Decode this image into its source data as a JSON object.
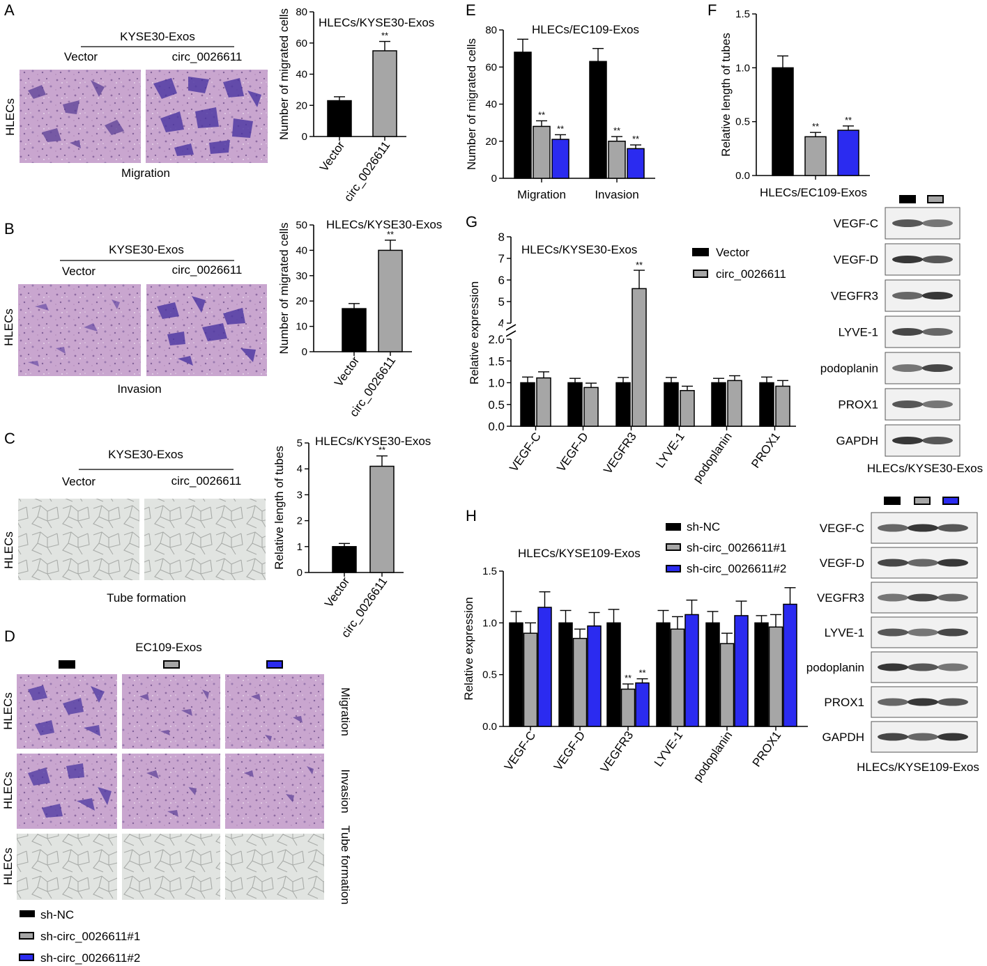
{
  "panels": {
    "A": {
      "letter": "A",
      "exos": "KYSE30-Exos",
      "col1": "Vector",
      "col2": "circ_0026611",
      "row": "HLECs",
      "caption": "Migration",
      "chart_title": "HLECs/KYSE30-Exos",
      "ylabel": "Number of migrated cells",
      "star": "**"
    },
    "B": {
      "letter": "B",
      "exos": "KYSE30-Exos",
      "col1": "Vector",
      "col2": "circ_0026611",
      "row": "HLECs",
      "caption": "Invasion",
      "chart_title": "HLECs/KYSE30-Exos",
      "ylabel": "Number of migrated cells",
      "star": "**"
    },
    "C": {
      "letter": "C",
      "exos": "KYSE30-Exos",
      "col1": "Vector",
      "col2": "circ_0026611",
      "row": "HLECs",
      "caption": "Tube formation",
      "chart_title": "HLECs/KYSE30-Exos",
      "ylabel": "Relative length of tubes",
      "star": "**"
    },
    "D": {
      "letter": "D",
      "exos": "EC109-Exos",
      "rows": [
        "HLECs",
        "HLECs",
        "HLECs"
      ],
      "side": [
        "Migration",
        "Invasion",
        "Tube formation"
      ],
      "legend": [
        "sh-NC",
        "sh-circ_0026611#1",
        "sh-circ_0026611#2"
      ]
    },
    "E": {
      "letter": "E",
      "chart_title": "HLECs/EC109-Exos",
      "ylabel": "Number of migrated cells",
      "star": "**"
    },
    "F": {
      "letter": "F",
      "xtitle": "HLECs/EC109-Exos",
      "ylabel": "Relative length of tubes",
      "star": "**"
    },
    "G": {
      "letter": "G",
      "chart_title": "HLECs/KYSE30-Exos",
      "ylabel": "Relative expression",
      "legend": [
        "Vector",
        "circ_0026611"
      ],
      "star": "**",
      "blot_title": "HLECs/KYSE30-Exos",
      "blot_labels": [
        "VEGF-C",
        "VEGF-D",
        "VEGFR3",
        "LYVE-1",
        "podoplanin",
        "PROX1",
        "GAPDH"
      ]
    },
    "H": {
      "letter": "H",
      "chart_title": "HLECs/KYSE109-Exos",
      "ylabel": "Relative expression",
      "legend": [
        "sh-NC",
        "sh-circ_0026611#1",
        "sh-circ_0026611#2"
      ],
      "star": "**",
      "blot_title": "HLECs/KYSE109-Exos",
      "blot_labels": [
        "VEGF-C",
        "VEGF-D",
        "VEGFR3",
        "LYVE-1",
        "podoplanin",
        "PROX1",
        "GAPDH"
      ]
    }
  },
  "colors": {
    "black": "#000000",
    "gray": "#a6a6a6",
    "blue": "#2b2bf0"
  },
  "chart_data": [
    {
      "id": "A",
      "type": "bar",
      "title": "HLECs/KYSE30-Exos",
      "ylabel": "Number of migrated cells",
      "categories": [
        "Vector",
        "circ_0026611"
      ],
      "values": [
        23,
        55
      ],
      "errors": [
        2.5,
        6
      ],
      "significance": [
        "",
        "**"
      ],
      "ylim": [
        0,
        80
      ],
      "yticks": [
        0,
        20,
        40,
        60,
        80
      ]
    },
    {
      "id": "B",
      "type": "bar",
      "title": "HLECs/KYSE30-Exos",
      "ylabel": "Number of migrated cells",
      "categories": [
        "Vector",
        "circ_0026611"
      ],
      "values": [
        17,
        40
      ],
      "errors": [
        2,
        4
      ],
      "significance": [
        "",
        "**"
      ],
      "ylim": [
        0,
        50
      ],
      "yticks": [
        0,
        10,
        20,
        30,
        40,
        50
      ]
    },
    {
      "id": "C",
      "type": "bar",
      "title": "HLECs/KYSE30-Exos",
      "ylabel": "Relative length of tubes",
      "categories": [
        "Vector",
        "circ_0026611"
      ],
      "values": [
        1.0,
        4.1
      ],
      "errors": [
        0.12,
        0.4
      ],
      "significance": [
        "",
        "**"
      ],
      "ylim": [
        0,
        5
      ],
      "yticks": [
        0,
        1,
        2,
        3,
        4,
        5
      ]
    },
    {
      "id": "E",
      "type": "bar",
      "title": "HLECs/EC109-Exos",
      "ylabel": "Number of migrated cells",
      "categories": [
        "Migration",
        "Invasion"
      ],
      "series": [
        {
          "values": [
            68,
            63
          ],
          "errors": [
            7,
            7
          ],
          "significance": [
            "",
            ""
          ]
        },
        {
          "values": [
            28,
            20
          ],
          "errors": [
            3,
            2.5
          ],
          "significance": [
            "**",
            "**"
          ]
        },
        {
          "values": [
            21,
            16
          ],
          "errors": [
            2.5,
            2
          ],
          "significance": [
            "**",
            "**"
          ]
        }
      ],
      "ylim": [
        0,
        80
      ],
      "yticks": [
        0,
        20,
        40,
        60,
        80
      ]
    },
    {
      "id": "F",
      "type": "bar",
      "xlabel": "HLECs/EC109-Exos",
      "ylabel": "Relative length of tubes",
      "categories": [
        ""
      ],
      "series": [
        {
          "values": [
            1.0
          ],
          "errors": [
            0.11
          ],
          "significance": [
            ""
          ]
        },
        {
          "values": [
            0.36
          ],
          "errors": [
            0.04
          ],
          "significance": [
            "**"
          ]
        },
        {
          "values": [
            0.42
          ],
          "errors": [
            0.04
          ],
          "significance": [
            "**"
          ]
        }
      ],
      "ylim": [
        0,
        1.5
      ],
      "yticks": [
        0.0,
        0.5,
        1.0,
        1.5
      ]
    },
    {
      "id": "G",
      "type": "bar",
      "title": "HLECs/KYSE30-Exos",
      "ylabel": "Relative expression",
      "categories": [
        "VEGF-C",
        "VEGF-D",
        "VEGFR3",
        "LYVE-1",
        "podoplanin",
        "PROX1"
      ],
      "series": [
        {
          "name": "Vector",
          "values": [
            1.0,
            1.0,
            1.0,
            1.0,
            1.0,
            1.0
          ],
          "errors": [
            0.13,
            0.1,
            0.12,
            0.12,
            0.1,
            0.13
          ]
        },
        {
          "name": "circ_0026611",
          "values": [
            1.11,
            0.89,
            5.6,
            0.82,
            1.05,
            0.92
          ],
          "errors": [
            0.14,
            0.1,
            0.85,
            0.1,
            0.11,
            0.13
          ],
          "significance": [
            "",
            "",
            "**",
            "",
            "",
            ""
          ]
        }
      ],
      "axis_break": [
        2.0,
        4.0
      ],
      "ylim": [
        0,
        8
      ],
      "yticks": [
        0.0,
        0.5,
        1.0,
        1.5,
        2.0,
        4,
        5,
        6,
        7,
        8
      ]
    },
    {
      "id": "H",
      "type": "bar",
      "title": "HLECs/KYSE109-Exos",
      "ylabel": "Relative expression",
      "categories": [
        "VEGF-C",
        "VEGF-D",
        "VEGFR3",
        "LYVE-1",
        "podoplanin",
        "PROX1"
      ],
      "series": [
        {
          "name": "sh-NC",
          "values": [
            1.0,
            1.0,
            1.0,
            1.0,
            1.0,
            1.0
          ],
          "errors": [
            0.11,
            0.12,
            0.13,
            0.12,
            0.11,
            0.07
          ]
        },
        {
          "name": "sh-circ_0026611#1",
          "values": [
            0.9,
            0.85,
            0.36,
            0.94,
            0.8,
            0.96
          ],
          "errors": [
            0.1,
            0.09,
            0.05,
            0.12,
            0.1,
            0.12
          ],
          "significance": [
            "",
            "",
            "**",
            "",
            "",
            ""
          ]
        },
        {
          "name": "sh-circ_0026611#2",
          "values": [
            1.15,
            0.97,
            0.42,
            1.08,
            1.07,
            1.18
          ],
          "errors": [
            0.15,
            0.13,
            0.04,
            0.14,
            0.14,
            0.16
          ],
          "significance": [
            "",
            "",
            "**",
            "",
            "",
            ""
          ]
        }
      ],
      "ylim": [
        0,
        1.5
      ],
      "yticks": [
        0.0,
        0.5,
        1.0,
        1.5
      ]
    }
  ]
}
